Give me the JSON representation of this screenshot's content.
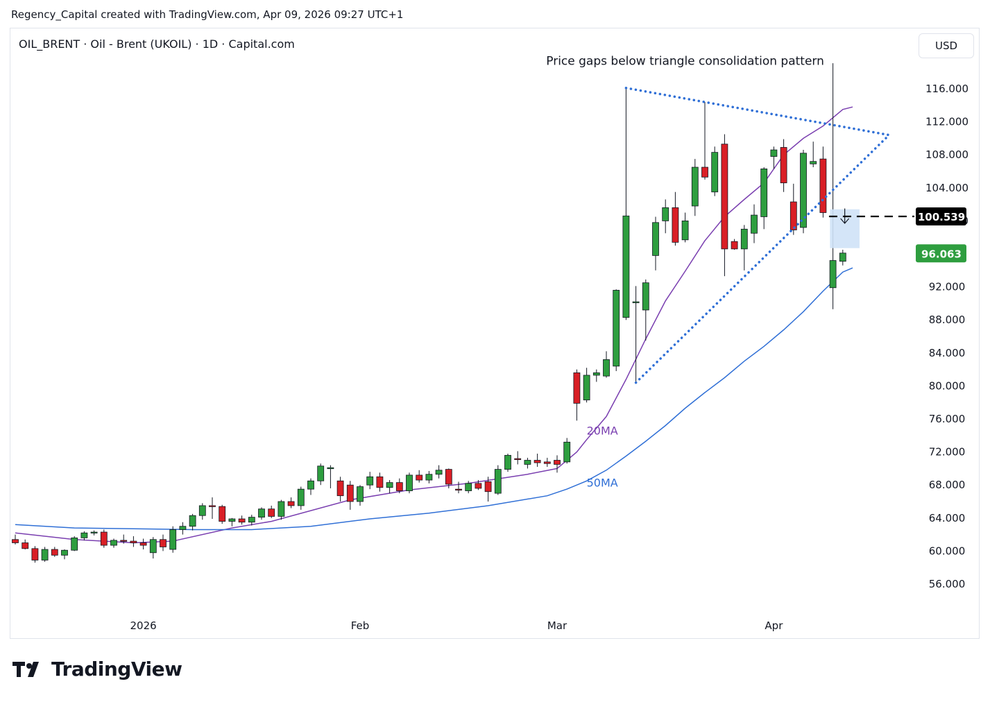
{
  "header": {
    "caption": "Regency_Capital created with TradingView.com, Apr 09, 2026 09:27 UTC+1"
  },
  "symbol": {
    "title": "OIL_BRENT · Oil - Brent (UKOIL) · 1D · Capital.com"
  },
  "currency_button": {
    "label": "USD"
  },
  "footer": {
    "logo_text": "TradingView"
  },
  "colors": {
    "up_candle": "#2e9e3f",
    "down_candle": "#d91f26",
    "ma20": "#7a3fb0",
    "ma50": "#2f6fd6",
    "trendline": "#2f6fd6",
    "gap_box": "#cfe2f7",
    "last_price_badge": "#2e9e3f",
    "level_badge": "#000000"
  },
  "chart_data": {
    "type": "candlestick",
    "title": "",
    "xlabel": "",
    "ylabel": "",
    "ylim": [
      52,
      120
    ],
    "grid": false,
    "y_ticks": [
      "116.000",
      "112.000",
      "108.000",
      "104.000",
      "100.000",
      "96.000",
      "92.000",
      "88.000",
      "84.000",
      "80.000",
      "76.000",
      "72.000",
      "68.000",
      "64.000",
      "60.000",
      "56.000"
    ],
    "y_tick_values": [
      116,
      112,
      108,
      104,
      100,
      96,
      92,
      88,
      84,
      80,
      76,
      72,
      68,
      64,
      60,
      56
    ],
    "x_ticks": [
      {
        "label": "2026",
        "index": 13
      },
      {
        "label": "Feb",
        "index": 35
      },
      {
        "label": "Mar",
        "index": 55
      },
      {
        "label": "Apr",
        "index": 77
      }
    ],
    "candles": [
      {
        "o": 61.4,
        "h": 62.0,
        "l": 60.8,
        "c": 61.0
      },
      {
        "o": 61.0,
        "h": 61.4,
        "l": 60.2,
        "c": 60.3
      },
      {
        "o": 60.3,
        "h": 60.6,
        "l": 58.6,
        "c": 58.9
      },
      {
        "o": 58.9,
        "h": 60.5,
        "l": 58.7,
        "c": 60.2
      },
      {
        "o": 60.2,
        "h": 60.5,
        "l": 59.3,
        "c": 59.5
      },
      {
        "o": 59.5,
        "h": 60.2,
        "l": 59.0,
        "c": 60.1
      },
      {
        "o": 60.1,
        "h": 61.8,
        "l": 60.0,
        "c": 61.6
      },
      {
        "o": 61.6,
        "h": 62.4,
        "l": 61.3,
        "c": 62.2
      },
      {
        "o": 62.2,
        "h": 62.5,
        "l": 61.9,
        "c": 62.3
      },
      {
        "o": 62.3,
        "h": 62.6,
        "l": 60.4,
        "c": 60.7
      },
      {
        "o": 60.7,
        "h": 61.5,
        "l": 60.4,
        "c": 61.3
      },
      {
        "o": 61.3,
        "h": 62.0,
        "l": 60.9,
        "c": 61.2
      },
      {
        "o": 61.2,
        "h": 61.8,
        "l": 60.5,
        "c": 61.0
      },
      {
        "o": 61.0,
        "h": 61.5,
        "l": 60.2,
        "c": 60.7
      },
      {
        "o": 59.8,
        "h": 61.7,
        "l": 59.1,
        "c": 61.4
      },
      {
        "o": 61.4,
        "h": 62.0,
        "l": 60.0,
        "c": 60.5
      },
      {
        "o": 60.2,
        "h": 63.0,
        "l": 59.8,
        "c": 62.6
      },
      {
        "o": 62.6,
        "h": 63.5,
        "l": 62.0,
        "c": 63.0
      },
      {
        "o": 63.0,
        "h": 64.5,
        "l": 62.5,
        "c": 64.3
      },
      {
        "o": 64.3,
        "h": 65.8,
        "l": 63.8,
        "c": 65.5
      },
      {
        "o": 65.5,
        "h": 66.5,
        "l": 63.9,
        "c": 65.4
      },
      {
        "o": 65.4,
        "h": 65.6,
        "l": 63.3,
        "c": 63.6
      },
      {
        "o": 63.6,
        "h": 64.0,
        "l": 63.0,
        "c": 63.9
      },
      {
        "o": 63.9,
        "h": 64.3,
        "l": 63.2,
        "c": 63.5
      },
      {
        "o": 63.5,
        "h": 64.4,
        "l": 63.1,
        "c": 64.1
      },
      {
        "o": 64.1,
        "h": 65.3,
        "l": 63.8,
        "c": 65.1
      },
      {
        "o": 65.1,
        "h": 65.5,
        "l": 64.0,
        "c": 64.2
      },
      {
        "o": 64.2,
        "h": 66.2,
        "l": 63.8,
        "c": 66.0
      },
      {
        "o": 66.0,
        "h": 66.5,
        "l": 65.2,
        "c": 65.5
      },
      {
        "o": 65.5,
        "h": 67.8,
        "l": 65.0,
        "c": 67.5
      },
      {
        "o": 67.5,
        "h": 68.8,
        "l": 66.8,
        "c": 68.5
      },
      {
        "o": 68.5,
        "h": 70.6,
        "l": 68.0,
        "c": 70.3
      },
      {
        "o": 70.0,
        "h": 70.4,
        "l": 67.6,
        "c": 70.1
      },
      {
        "o": 68.5,
        "h": 69.0,
        "l": 66.0,
        "c": 66.7
      },
      {
        "o": 68.0,
        "h": 68.5,
        "l": 65.0,
        "c": 66.0
      },
      {
        "o": 66.0,
        "h": 68.0,
        "l": 65.5,
        "c": 67.8
      },
      {
        "o": 68.0,
        "h": 69.6,
        "l": 67.5,
        "c": 69.0
      },
      {
        "o": 69.0,
        "h": 69.5,
        "l": 67.2,
        "c": 67.7
      },
      {
        "o": 67.7,
        "h": 68.6,
        "l": 67.0,
        "c": 68.3
      },
      {
        "o": 68.3,
        "h": 68.8,
        "l": 67.0,
        "c": 67.3
      },
      {
        "o": 67.3,
        "h": 69.5,
        "l": 67.0,
        "c": 69.2
      },
      {
        "o": 69.2,
        "h": 69.8,
        "l": 68.3,
        "c": 68.6
      },
      {
        "o": 68.6,
        "h": 69.7,
        "l": 68.2,
        "c": 69.3
      },
      {
        "o": 69.3,
        "h": 70.4,
        "l": 68.8,
        "c": 69.8
      },
      {
        "o": 69.9,
        "h": 70.0,
        "l": 67.6,
        "c": 68.1
      },
      {
        "o": 67.5,
        "h": 68.4,
        "l": 67.0,
        "c": 67.4
      },
      {
        "o": 67.3,
        "h": 68.5,
        "l": 67.0,
        "c": 68.2
      },
      {
        "o": 68.2,
        "h": 68.6,
        "l": 67.4,
        "c": 67.6
      },
      {
        "o": 68.4,
        "h": 69.0,
        "l": 66.0,
        "c": 67.2
      },
      {
        "o": 67.0,
        "h": 70.4,
        "l": 66.8,
        "c": 69.9
      },
      {
        "o": 69.9,
        "h": 71.8,
        "l": 69.6,
        "c": 71.6
      },
      {
        "o": 71.2,
        "h": 72.1,
        "l": 70.5,
        "c": 71.1
      },
      {
        "o": 70.5,
        "h": 71.3,
        "l": 70.0,
        "c": 71.0
      },
      {
        "o": 71.0,
        "h": 71.8,
        "l": 70.2,
        "c": 70.7
      },
      {
        "o": 70.8,
        "h": 71.3,
        "l": 70.2,
        "c": 70.6
      },
      {
        "o": 71.0,
        "h": 71.6,
        "l": 69.5,
        "c": 70.5
      },
      {
        "o": 70.8,
        "h": 73.7,
        "l": 70.6,
        "c": 73.2
      },
      {
        "o": 81.6,
        "h": 82.0,
        "l": 75.8,
        "c": 77.9
      },
      {
        "o": 78.3,
        "h": 82.2,
        "l": 78.0,
        "c": 81.3
      },
      {
        "o": 81.3,
        "h": 82.0,
        "l": 80.5,
        "c": 81.6
      },
      {
        "o": 81.2,
        "h": 84.2,
        "l": 81.0,
        "c": 83.2
      },
      {
        "o": 82.4,
        "h": 91.7,
        "l": 81.8,
        "c": 91.6
      },
      {
        "o": 88.3,
        "h": 116.1,
        "l": 88.0,
        "c": 100.6
      },
      {
        "o": 90.1,
        "h": 92.1,
        "l": 80.4,
        "c": 90.2
      },
      {
        "o": 89.2,
        "h": 92.9,
        "l": 85.5,
        "c": 92.5
      },
      {
        "o": 95.8,
        "h": 100.5,
        "l": 94.0,
        "c": 99.8
      },
      {
        "o": 100.0,
        "h": 102.6,
        "l": 98.5,
        "c": 101.6
      },
      {
        "o": 101.6,
        "h": 103.5,
        "l": 97.0,
        "c": 97.4
      },
      {
        "o": 97.7,
        "h": 101.0,
        "l": 97.4,
        "c": 100.0
      },
      {
        "o": 101.8,
        "h": 107.5,
        "l": 100.6,
        "c": 106.5
      },
      {
        "o": 106.5,
        "h": 114.4,
        "l": 105.0,
        "c": 105.3
      },
      {
        "o": 103.5,
        "h": 109.0,
        "l": 103.0,
        "c": 108.3
      },
      {
        "o": 109.3,
        "h": 110.5,
        "l": 93.3,
        "c": 96.6
      },
      {
        "o": 97.5,
        "h": 97.8,
        "l": 96.5,
        "c": 96.6
      },
      {
        "o": 96.6,
        "h": 99.5,
        "l": 94.0,
        "c": 99.0
      },
      {
        "o": 98.5,
        "h": 102.0,
        "l": 97.3,
        "c": 100.7
      },
      {
        "o": 100.5,
        "h": 106.5,
        "l": 99.0,
        "c": 106.3
      },
      {
        "o": 107.8,
        "h": 109.0,
        "l": 106.3,
        "c": 108.6
      },
      {
        "o": 108.9,
        "h": 109.9,
        "l": 103.5,
        "c": 104.6
      },
      {
        "o": 102.3,
        "h": 104.5,
        "l": 98.3,
        "c": 98.9
      },
      {
        "o": 99.2,
        "h": 108.6,
        "l": 98.5,
        "c": 108.2
      },
      {
        "o": 106.9,
        "h": 109.6,
        "l": 106.5,
        "c": 107.2
      },
      {
        "o": 107.5,
        "h": 109.0,
        "l": 100.4,
        "c": 101.0
      },
      {
        "o": 91.9,
        "h": 119.1,
        "l": 89.3,
        "c": 95.2
      },
      {
        "o": 95.1,
        "h": 96.5,
        "l": 94.6,
        "c": 96.1
      }
    ],
    "series": [
      {
        "name": "20MA",
        "x": [
          0,
          6,
          12,
          16,
          22,
          26,
          34,
          40,
          46,
          52,
          55,
          57,
          58,
          60,
          62,
          64,
          66,
          68,
          70,
          72,
          74,
          76,
          78,
          80,
          82,
          84,
          85
        ],
        "values": [
          62.2,
          61.4,
          61.0,
          61.2,
          62.8,
          63.6,
          66.2,
          67.4,
          68.2,
          69.3,
          70.0,
          72.0,
          73.5,
          76.3,
          80.8,
          85.7,
          90.3,
          93.9,
          97.6,
          100.5,
          102.6,
          104.6,
          108.0,
          110.0,
          111.5,
          113.5,
          113.8
        ]
      },
      {
        "name": "50MA",
        "x": [
          0,
          6,
          12,
          18,
          24,
          30,
          36,
          42,
          48,
          54,
          56,
          58,
          60,
          62,
          64,
          66,
          68,
          70,
          72,
          74,
          76,
          78,
          80,
          82,
          84,
          85
        ],
        "values": [
          63.2,
          62.8,
          62.7,
          62.6,
          62.6,
          63.0,
          63.9,
          64.6,
          65.5,
          66.7,
          67.5,
          68.5,
          69.8,
          71.5,
          73.3,
          75.2,
          77.3,
          79.2,
          81.0,
          83.0,
          84.8,
          86.8,
          89.0,
          91.5,
          93.8,
          94.3
        ]
      }
    ],
    "series_labels": [
      {
        "name": "20MA",
        "text": "20MA",
        "x": 58,
        "y": 74.1
      },
      {
        "name": "50MA",
        "text": "50MA",
        "x": 58,
        "y": 67.8
      }
    ],
    "triangle": {
      "upper": [
        {
          "x": 62,
          "y": 116.1
        },
        {
          "x": 88.7,
          "y": 110.4
        }
      ],
      "lower": [
        {
          "x": 63,
          "y": 80.4
        },
        {
          "x": 88.7,
          "y": 110.4
        }
      ]
    },
    "gap": {
      "x_from": 82.7,
      "x_to": 85.7,
      "y_from": 96.7,
      "y_to": 101.4
    },
    "arrow": {
      "x": 84.2,
      "from": 101.5,
      "to": 99.7
    },
    "horizontal_line": {
      "x_from": 82.6,
      "value": 100.539
    },
    "annotation": {
      "text": "Price gaps below triangle consolidation pattern",
      "x": 68,
      "y": 118.9
    },
    "level_badges": [
      {
        "label": "100.539",
        "value": 100.539,
        "kind": "level"
      },
      {
        "label": "96.063",
        "value": 96.063,
        "kind": "last"
      }
    ]
  }
}
